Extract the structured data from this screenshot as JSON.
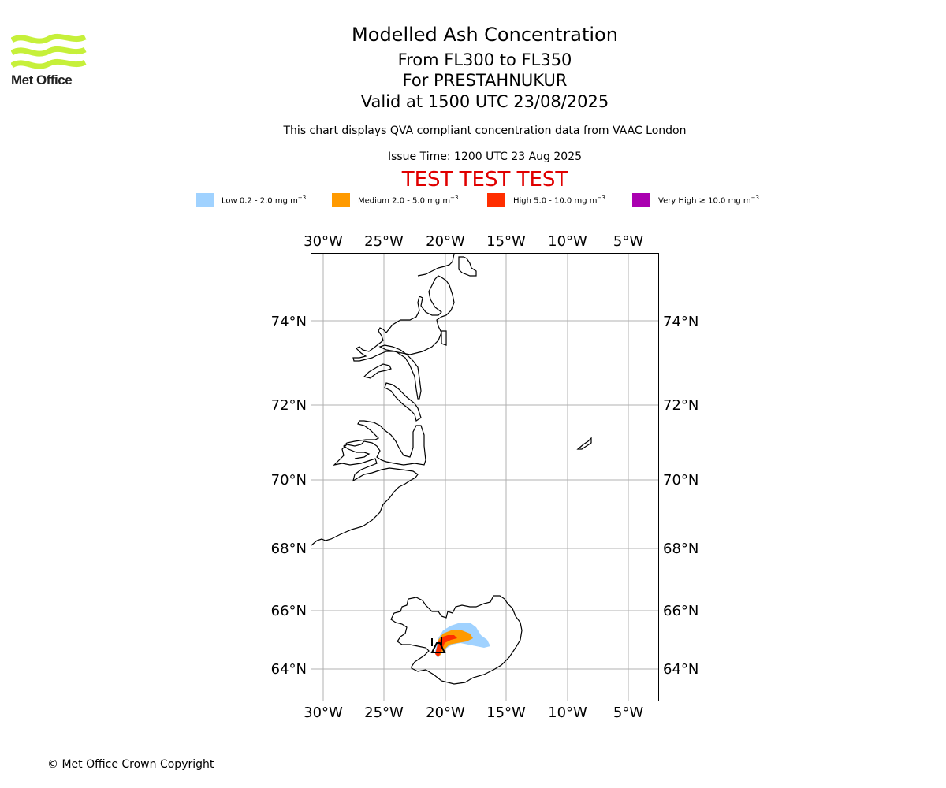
{
  "header": {
    "logo_text": "Met Office",
    "title": "Modelled Ash Concentration",
    "level_range": "From FL300 to FL350",
    "volcano": "For PRESTAHNUKUR",
    "valid_time": "Valid at 1500 UTC 23/08/2025",
    "description": "This chart displays QVA compliant concentration data from VAAC London",
    "issue_time": "Issue Time: 1200 UTC 23 Aug 2025",
    "test_banner": "TEST TEST TEST"
  },
  "legend": [
    {
      "label_main": "Low 0.2 - 2.0 mg m",
      "unit_exp": "−3",
      "color": "#a0d2ff"
    },
    {
      "label_main": "Medium 2.0 - 5.0 mg m",
      "unit_exp": "−3",
      "color": "#ff9a00"
    },
    {
      "label_main": "High 5.0 - 10.0 mg m",
      "unit_exp": "−3",
      "color": "#ff2e00"
    },
    {
      "label_main": "Very High  ≥  10.0 mg m",
      "unit_exp": "−3",
      "color": "#aa00b0"
    }
  ],
  "map": {
    "lon_ticks": [
      "30°W",
      "25°W",
      "20°W",
      "15°W",
      "10°W",
      "5°W"
    ],
    "lat_ticks": [
      "74°N",
      "72°N",
      "70°N",
      "68°N",
      "66°N",
      "64°N"
    ],
    "gridlines": true
  },
  "footer": {
    "copyright": "© Met Office Crown Copyright"
  }
}
